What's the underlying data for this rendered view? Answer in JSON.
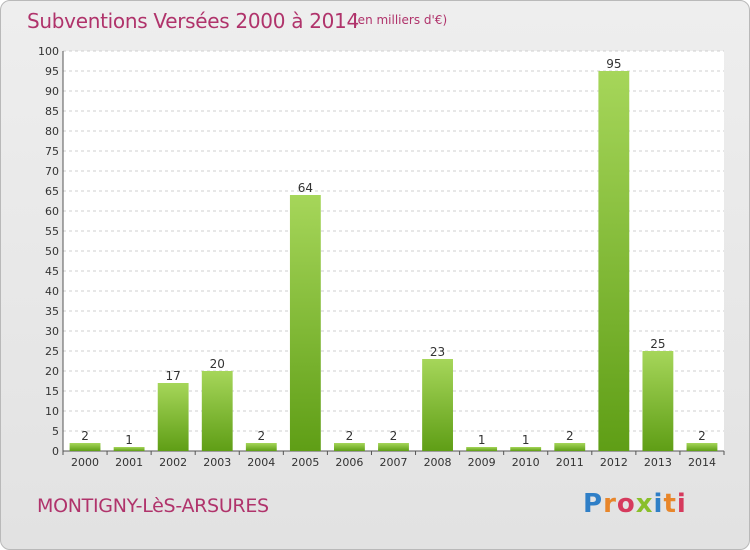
{
  "header": {
    "title": "Subventions Versées 2000 à 2014",
    "subtitle": "(en milliers d'€)"
  },
  "footer": {
    "town": "MONTIGNY-LèS-ARSURES",
    "logo_text": "Proxiti",
    "logo_colors": [
      "#2f7fc7",
      "#e8862a",
      "#d63a5d",
      "#8abf2a",
      "#2f7fc7",
      "#e8862a",
      "#d63a5d"
    ]
  },
  "colors": {
    "bar_light": "#a6d65a",
    "bar_dark": "#5f9e16",
    "grid": "#cfcfcf",
    "title": "#b0336b"
  },
  "chart_data": {
    "type": "bar",
    "categories": [
      "2000",
      "2001",
      "2002",
      "2003",
      "2004",
      "2005",
      "2006",
      "2007",
      "2008",
      "2009",
      "2010",
      "2011",
      "2012",
      "2013",
      "2014"
    ],
    "values": [
      2,
      1,
      17,
      20,
      2,
      64,
      2,
      2,
      23,
      1,
      1,
      2,
      95,
      25,
      2
    ],
    "yticks": [
      0,
      5,
      10,
      15,
      20,
      25,
      30,
      35,
      40,
      45,
      50,
      55,
      60,
      65,
      70,
      75,
      80,
      85,
      90,
      95,
      100
    ],
    "ylim": [
      0,
      100
    ],
    "grid": true,
    "legend": "none"
  }
}
